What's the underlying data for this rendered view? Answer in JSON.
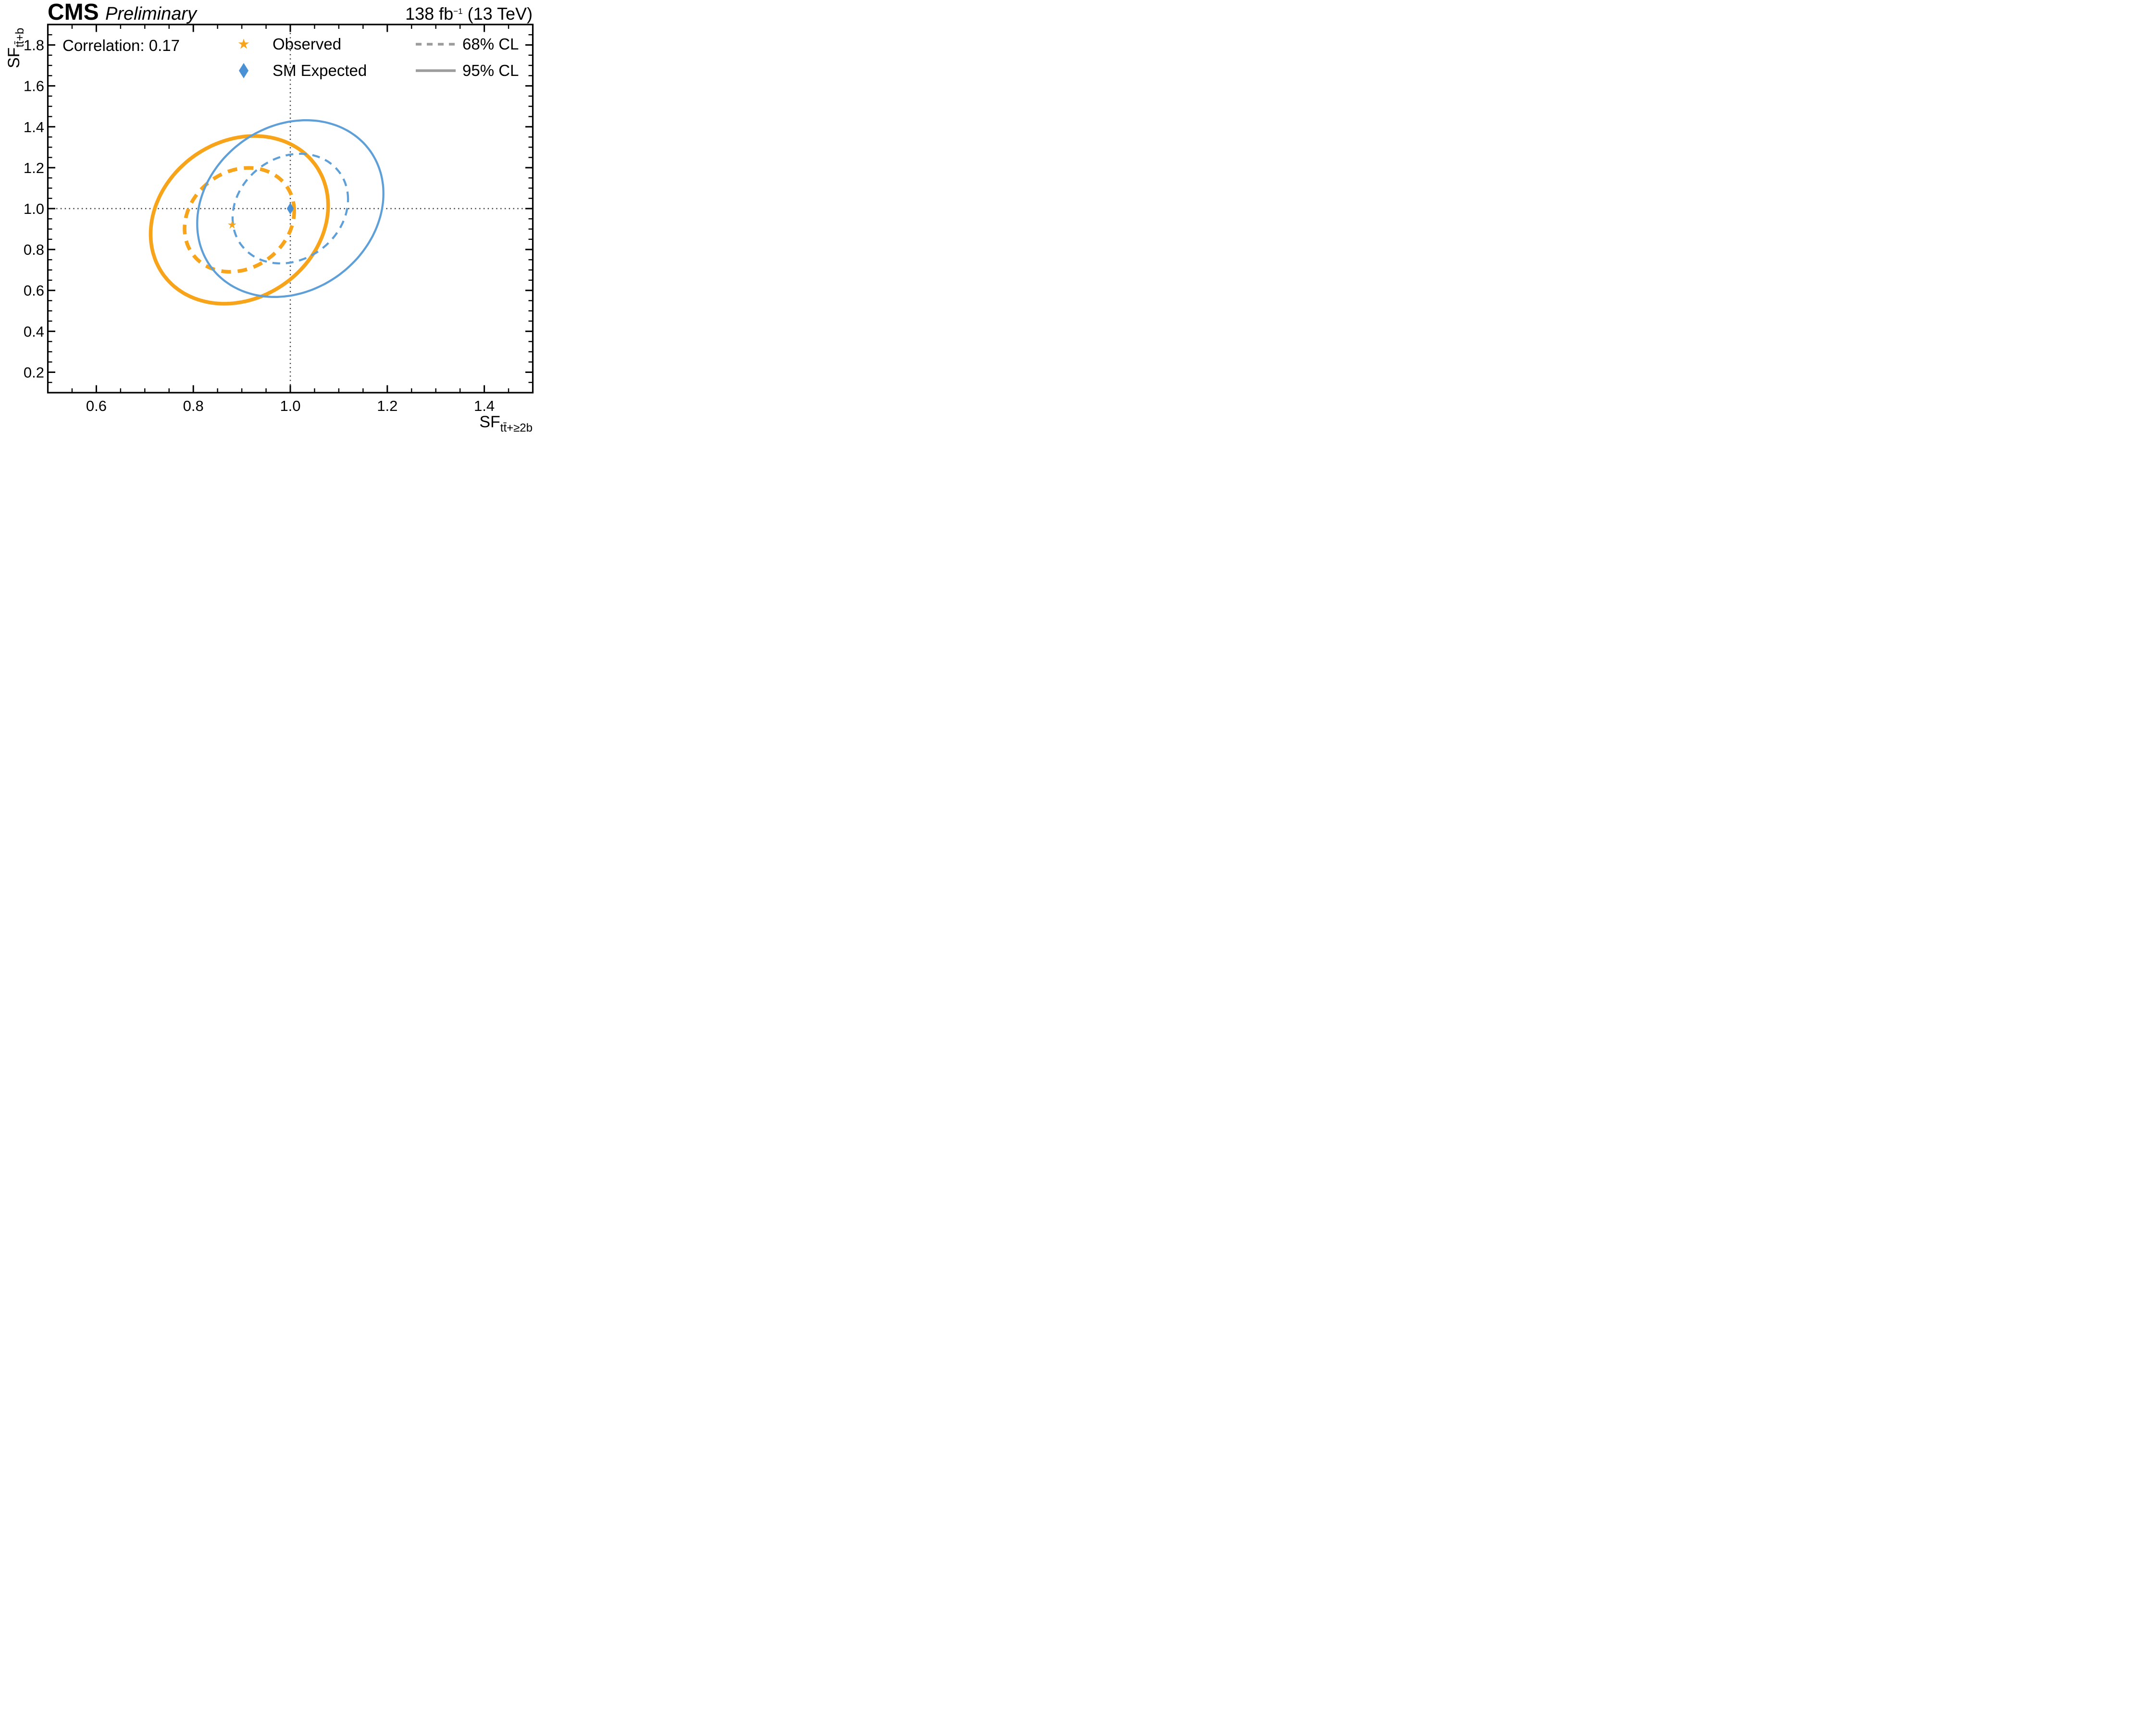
{
  "header": {
    "experiment": "CMS",
    "preliminary": "Preliminary",
    "lumi_prefix": "138 fb",
    "lumi_sup": "−1",
    "lumi_suffix": " (13 TeV)"
  },
  "annotation": {
    "correlation": "Correlation: 0.17"
  },
  "legend": {
    "observed_label": "Observed",
    "sm_expected_label": "SM Expected",
    "cl68_label": "68% CL",
    "cl95_label": "95% CL"
  },
  "axes": {
    "x": {
      "title_main": "SF",
      "title_sub": "tt̄+≥2b",
      "min": 0.5,
      "max": 1.5,
      "major_ticks": [
        0.6,
        0.8,
        1.0,
        1.2,
        1.4
      ],
      "minor_step": 0.05
    },
    "y": {
      "title_main": "SF",
      "title_sub": "tt̄+b",
      "min": 0.1,
      "max": 1.9,
      "major_ticks": [
        0.2,
        0.4,
        0.6,
        0.8,
        1.0,
        1.2,
        1.4,
        1.6,
        1.8
      ],
      "minor_step": 0.05
    }
  },
  "chart_data": {
    "type": "scatter",
    "subtype": "confidence-contours",
    "title": "CMS Preliminary 138 fb-1 (13 TeV)",
    "xlabel": "SF_tt+>=2b",
    "ylabel": "SF_tt+b",
    "xlim": [
      0.5,
      1.5
    ],
    "ylim": [
      0.1,
      1.9
    ],
    "grid": false,
    "correlation": 0.17,
    "points": [
      {
        "name": "Observed",
        "x": 0.88,
        "y": 0.92,
        "marker": "star",
        "color": "#F7A41A"
      },
      {
        "name": "SM Expected",
        "x": 1.0,
        "y": 1.0,
        "marker": "diamond",
        "color": "#4A90D5"
      }
    ],
    "contours": [
      {
        "series": "Observed",
        "cl": "95% CL",
        "style": "solid",
        "color": "#F7A41A",
        "cx": 0.895,
        "cy": 0.945,
        "rx": 0.183,
        "ry": 0.41,
        "corr": 0.17,
        "width": 7.6
      },
      {
        "series": "Observed",
        "cl": "68% CL",
        "style": "dashed",
        "color": "#F7A41A",
        "cx": 0.895,
        "cy": 0.945,
        "rx": 0.113,
        "ry": 0.254,
        "corr": 0.17,
        "width": 7.6
      },
      {
        "series": "SM Expected",
        "cl": "95% CL",
        "style": "solid",
        "color": "#5E9FD8",
        "cx": 1.0,
        "cy": 1.0,
        "rx": 0.192,
        "ry": 0.432,
        "corr": 0.17,
        "width": 4.3
      },
      {
        "series": "SM Expected",
        "cl": "68% CL",
        "style": "dashed",
        "color": "#5E9FD8",
        "cx": 1.0,
        "cy": 1.0,
        "rx": 0.119,
        "ry": 0.268,
        "corr": 0.17,
        "width": 4.3
      }
    ],
    "crosshair": {
      "x": 1.0,
      "y": 1.0
    }
  },
  "colors": {
    "orange": "#F7A41A",
    "blue": "#5E9FD8",
    "diamond_blue": "#4A90D5",
    "legend_gray": "#9C9C9C",
    "crosshair": "#3D3D3D",
    "frame": "#000000"
  }
}
